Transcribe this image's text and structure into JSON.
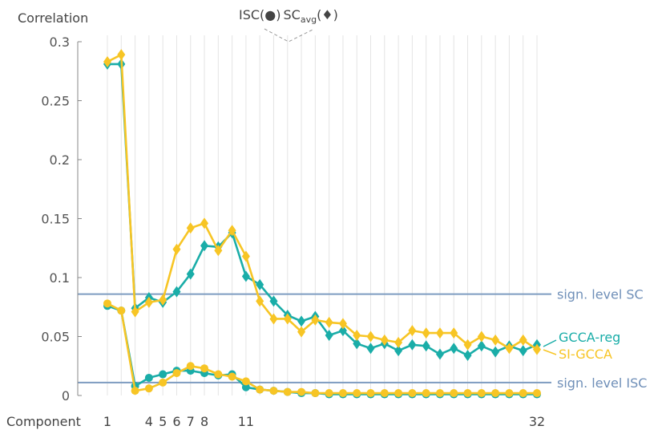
{
  "chart_data": {
    "type": "line",
    "ylabel": "Correlation",
    "xlabel": "Component",
    "legend_top": {
      "isc": "ISC(●)",
      "sc": "SC",
      "avg": "avg",
      "sc_suffix": "(♦)"
    },
    "ylim": [
      0,
      0.3
    ],
    "yticks": [
      "0",
      "0.05",
      "0.1",
      "0.15",
      "0.2",
      "0.25",
      "0.3"
    ],
    "xticks": [
      "1",
      "4",
      "5",
      "6",
      "7",
      "8",
      "11",
      "32"
    ],
    "xlim": [
      1,
      32
    ],
    "grid": "vertical",
    "colors": {
      "gcca_reg": "#1aada8",
      "si_gcca": "#f7c525",
      "sig": "#7d9cc0"
    },
    "significance": [
      {
        "name": "sign. level SC",
        "value": 0.086
      },
      {
        "name": "sign. level ISC",
        "value": 0.011
      }
    ],
    "series": [
      {
        "name": "GCCA-reg",
        "metric": "SC",
        "marker": "diamond",
        "color": "#1aada8",
        "values": [
          0.281,
          0.281,
          0.074,
          0.083,
          0.079,
          0.088,
          0.103,
          0.127,
          0.126,
          0.138,
          0.101,
          0.094,
          0.08,
          0.068,
          0.063,
          0.067,
          0.051,
          0.055,
          0.044,
          0.04,
          0.044,
          0.038,
          0.043,
          0.042,
          0.035,
          0.04,
          0.034,
          0.042,
          0.037,
          0.042,
          0.038,
          0.043
        ]
      },
      {
        "name": "GCCA-reg",
        "metric": "ISC",
        "marker": "circle",
        "color": "#1aada8",
        "values": [
          0.076,
          0.072,
          0.008,
          0.015,
          0.018,
          0.021,
          0.021,
          0.019,
          0.017,
          0.018,
          0.007,
          0.005,
          0.004,
          0.003,
          0.002,
          0.002,
          0.001,
          0.001,
          0.001,
          0.001,
          0.001,
          0.001,
          0.001,
          0.001,
          0.001,
          0.001,
          0.001,
          0.001,
          0.001,
          0.001,
          0.001,
          0.001
        ]
      },
      {
        "name": "SI-GCCA",
        "metric": "SC",
        "marker": "diamond",
        "color": "#f7c525",
        "values": [
          0.283,
          0.289,
          0.071,
          0.079,
          0.081,
          0.124,
          0.142,
          0.146,
          0.123,
          0.14,
          0.118,
          0.08,
          0.065,
          0.065,
          0.054,
          0.064,
          0.062,
          0.061,
          0.051,
          0.05,
          0.047,
          0.045,
          0.055,
          0.053,
          0.053,
          0.053,
          0.043,
          0.05,
          0.047,
          0.04,
          0.047,
          0.039
        ]
      },
      {
        "name": "SI-GCCA",
        "metric": "ISC",
        "marker": "circle",
        "color": "#f7c525",
        "values": [
          0.078,
          0.072,
          0.004,
          0.006,
          0.011,
          0.019,
          0.025,
          0.023,
          0.018,
          0.016,
          0.012,
          0.005,
          0.004,
          0.003,
          0.003,
          0.002,
          0.002,
          0.002,
          0.002,
          0.002,
          0.002,
          0.002,
          0.002,
          0.002,
          0.002,
          0.002,
          0.002,
          0.002,
          0.002,
          0.002,
          0.002,
          0.002
        ]
      }
    ],
    "legend": [
      {
        "name": "GCCA-reg",
        "color": "#1aada8"
      },
      {
        "name": "SI-GCCA",
        "color": "#f7c525"
      }
    ]
  }
}
